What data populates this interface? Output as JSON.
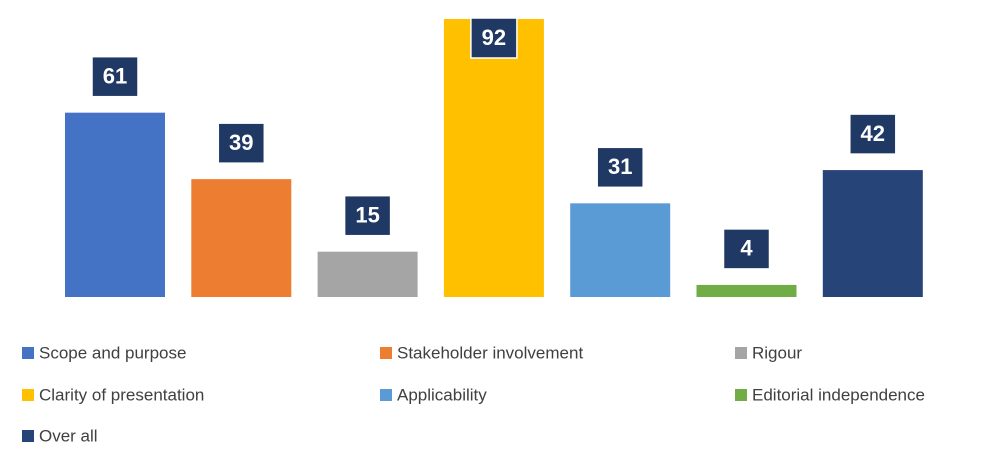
{
  "chart_data": {
    "type": "bar",
    "series": [
      {
        "name": "Scope and purpose",
        "color": "#4472c4",
        "values": [
          61
        ]
      },
      {
        "name": "Stakeholder involvement",
        "color": "#ed7d31",
        "values": [
          39
        ]
      },
      {
        "name": "Rigour",
        "color": "#a5a5a5",
        "values": [
          15
        ]
      },
      {
        "name": "Clarity of presentation",
        "color": "#ffc000",
        "values": [
          92
        ]
      },
      {
        "name": "Applicability",
        "color": "#5b9bd5",
        "values": [
          31
        ]
      },
      {
        "name": "Editorial independence",
        "color": "#70ad47",
        "values": [
          4
        ]
      },
      {
        "name": "Over all",
        "color": "#264478",
        "values": [
          42
        ]
      }
    ],
    "value_label_color": "#1f3864",
    "legend": "bottom"
  }
}
